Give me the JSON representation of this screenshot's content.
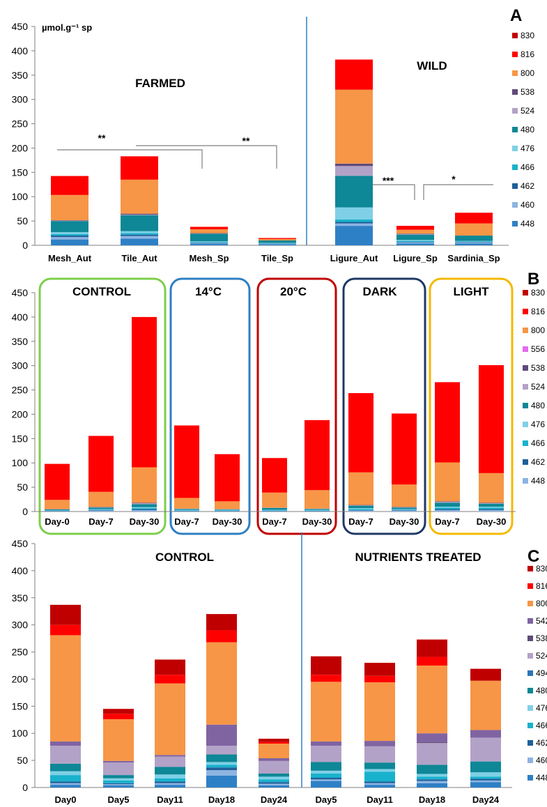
{
  "chart_data": [
    {
      "type": "bar",
      "stacked": true,
      "panel_label": "A",
      "ylabel": "µmol.g⁻¹ sp",
      "ylim": [
        0,
        450
      ],
      "yticks": [
        0,
        50,
        100,
        150,
        200,
        250,
        300,
        350,
        400,
        450
      ],
      "categories": [
        "Mesh_Aut",
        "Tile_Aut",
        "Mesh_Sp",
        "Tile_Sp",
        "Ligure_Aut",
        "Ligure_Sp",
        "Sardinia_Sp"
      ],
      "groups": [
        "FARMED",
        "WILD"
      ],
      "legend": [
        "830",
        "816",
        "800",
        "538",
        "524",
        "480",
        "476",
        "466",
        "462",
        "460",
        "448"
      ],
      "colors": {
        "830": "#c00000",
        "816": "#ff0000",
        "800": "#f79646",
        "538": "#604a7b",
        "524": "#b3a2c7",
        "480": "#0e8796",
        "476": "#7fd0e6",
        "466": "#19b2cc",
        "462": "#1f5f99",
        "460": "#8db4e2",
        "448": "#2e80c6"
      },
      "series": [
        {
          "name": "448",
          "values": [
            12,
            14,
            3,
            2,
            40,
            4,
            4
          ]
        },
        {
          "name": "460",
          "values": [
            5,
            5,
            1,
            1,
            5,
            2,
            2
          ]
        },
        {
          "name": "462",
          "values": [
            3,
            3,
            1,
            0.5,
            3,
            1,
            1
          ]
        },
        {
          "name": "466",
          "values": [
            3,
            3,
            1,
            0.5,
            5,
            2,
            1
          ]
        },
        {
          "name": "476",
          "values": [
            4,
            4,
            2,
            1,
            25,
            2,
            1
          ]
        },
        {
          "name": "480",
          "values": [
            23,
            33,
            16,
            5,
            65,
            11,
            11
          ]
        },
        {
          "name": "524",
          "values": [
            0.5,
            1,
            0.5,
            0,
            20,
            1,
            0
          ]
        },
        {
          "name": "538",
          "values": [
            1,
            2,
            0.5,
            0,
            5,
            1,
            0
          ]
        },
        {
          "name": "800",
          "values": [
            52,
            70,
            8,
            3,
            152,
            8,
            25
          ]
        },
        {
          "name": "816",
          "values": [
            39,
            48,
            5,
            2,
            62,
            8,
            22
          ]
        },
        {
          "name": "830",
          "values": [
            0,
            0,
            0,
            0,
            0,
            0,
            0
          ]
        }
      ],
      "significance": [
        "**",
        "**",
        "***",
        "*"
      ]
    },
    {
      "type": "bar",
      "stacked": true,
      "panel_label": "B",
      "ylim": [
        0,
        450
      ],
      "yticks": [
        0,
        50,
        100,
        150,
        200,
        250,
        300,
        350,
        400,
        450
      ],
      "categories": [
        "Day-0",
        "Day-7",
        "Day-30",
        "Day-7",
        "Day-30",
        "Day-7",
        "Day-30",
        "Day-7",
        "Day-30",
        "Day-7",
        "Day-30"
      ],
      "groups": [
        "CONTROL",
        "14°C",
        "20°C",
        "DARK",
        "LIGHT"
      ],
      "legend": [
        "830",
        "816",
        "800",
        "556",
        "538",
        "524",
        "480",
        "476",
        "466",
        "462",
        "448"
      ],
      "colors": {
        "830": "#c00000",
        "816": "#ff0000",
        "800": "#f79646",
        "556": "#e26bf0",
        "538": "#604a7b",
        "524": "#b3a2c7",
        "480": "#0e8796",
        "476": "#7fd0e6",
        "466": "#19b2cc",
        "462": "#1f5f99",
        "448": "#8db4e2"
      },
      "series": [
        {
          "name": "448",
          "values": [
            1,
            2,
            3,
            1,
            1,
            1,
            1,
            2,
            2,
            3,
            3
          ]
        },
        {
          "name": "462",
          "values": [
            0.5,
            1,
            2,
            0.5,
            0.5,
            0.5,
            0.5,
            1,
            1,
            2,
            2
          ]
        },
        {
          "name": "466",
          "values": [
            0.5,
            1,
            2,
            1,
            1,
            1,
            1,
            2,
            1,
            3,
            3
          ]
        },
        {
          "name": "476",
          "values": [
            0.5,
            1,
            2,
            1,
            1,
            1,
            1,
            2,
            1,
            2,
            2
          ]
        },
        {
          "name": "480",
          "values": [
            2,
            3,
            6,
            2,
            1,
            4,
            2,
            5,
            3,
            8,
            6
          ]
        },
        {
          "name": "524",
          "values": [
            0.5,
            1,
            2,
            0.5,
            0.5,
            0.5,
            0.5,
            1,
            1,
            2,
            1
          ]
        },
        {
          "name": "538",
          "values": [
            0,
            0.5,
            1,
            0,
            0,
            0,
            0,
            0.5,
            0.5,
            1,
            1
          ]
        },
        {
          "name": "556",
          "values": [
            0,
            0,
            0,
            0,
            0,
            0,
            0,
            0,
            0,
            0,
            0
          ]
        },
        {
          "name": "800",
          "values": [
            19,
            31,
            73,
            22,
            16,
            31,
            38,
            67,
            46,
            80,
            61
          ]
        },
        {
          "name": "816",
          "values": [
            74,
            115,
            309,
            149,
            97,
            71,
            144,
            163,
            146,
            165,
            222
          ]
        },
        {
          "name": "830",
          "values": [
            0,
            0,
            0,
            0,
            0,
            0,
            0,
            0,
            0,
            0,
            0
          ]
        }
      ]
    },
    {
      "type": "bar",
      "stacked": true,
      "panel_label": "C",
      "ylim": [
        0,
        450
      ],
      "yticks": [
        0,
        50,
        100,
        150,
        200,
        250,
        300,
        350,
        400,
        450
      ],
      "categories": [
        "Day0",
        "Day5",
        "Day11",
        "Day18",
        "Day24",
        "Day5",
        "Day11",
        "Day18",
        "Day24"
      ],
      "groups": [
        "CONTROL",
        "NUTRIENTS TREATED"
      ],
      "legend": [
        "830",
        "816",
        "800",
        "542",
        "538",
        "524",
        "494",
        "480",
        "476",
        "466",
        "462",
        "460",
        "448"
      ],
      "colors": {
        "830": "#c00000",
        "816": "#ff0000",
        "800": "#f79646",
        "542": "#8064a2",
        "538": "#604a7b",
        "524": "#b3a2c7",
        "494": "#2e75b6",
        "480": "#0e8796",
        "476": "#7fd0e6",
        "466": "#19b2cc",
        "462": "#1f5f99",
        "460": "#8db4e2",
        "448": "#2e80c6"
      },
      "series": [
        {
          "name": "448",
          "values": [
            5,
            4,
            5,
            22,
            4,
            12,
            5,
            8,
            10
          ]
        },
        {
          "name": "460",
          "values": [
            3,
            2,
            3,
            10,
            3,
            3,
            3,
            4,
            3
          ]
        },
        {
          "name": "462",
          "values": [
            3,
            2,
            3,
            5,
            3,
            3,
            3,
            3,
            3
          ]
        },
        {
          "name": "466",
          "values": [
            12,
            5,
            6,
            5,
            5,
            8,
            18,
            5,
            4
          ]
        },
        {
          "name": "476",
          "values": [
            7,
            4,
            7,
            5,
            5,
            5,
            5,
            5,
            8
          ]
        },
        {
          "name": "480",
          "values": [
            14,
            6,
            14,
            14,
            6,
            16,
            12,
            17,
            20
          ]
        },
        {
          "name": "494",
          "values": [
            0,
            0,
            0,
            0,
            0,
            0,
            0,
            0,
            0
          ]
        },
        {
          "name": "524",
          "values": [
            33,
            23,
            19,
            16,
            23,
            30,
            30,
            40,
            44
          ]
        },
        {
          "name": "538",
          "values": [
            0,
            0,
            0,
            0,
            0,
            0,
            0,
            2,
            0
          ]
        },
        {
          "name": "542",
          "values": [
            8,
            3,
            3,
            39,
            5,
            8,
            10,
            16,
            14
          ]
        },
        {
          "name": "800",
          "values": [
            196,
            77,
            132,
            152,
            27,
            110,
            108,
            125,
            91
          ]
        },
        {
          "name": "816",
          "values": [
            19,
            10,
            16,
            22,
            3,
            13,
            12,
            16,
            0
          ]
        },
        {
          "name": "830",
          "values": [
            37,
            9,
            28,
            30,
            6,
            34,
            24,
            32,
            22
          ]
        }
      ]
    }
  ]
}
